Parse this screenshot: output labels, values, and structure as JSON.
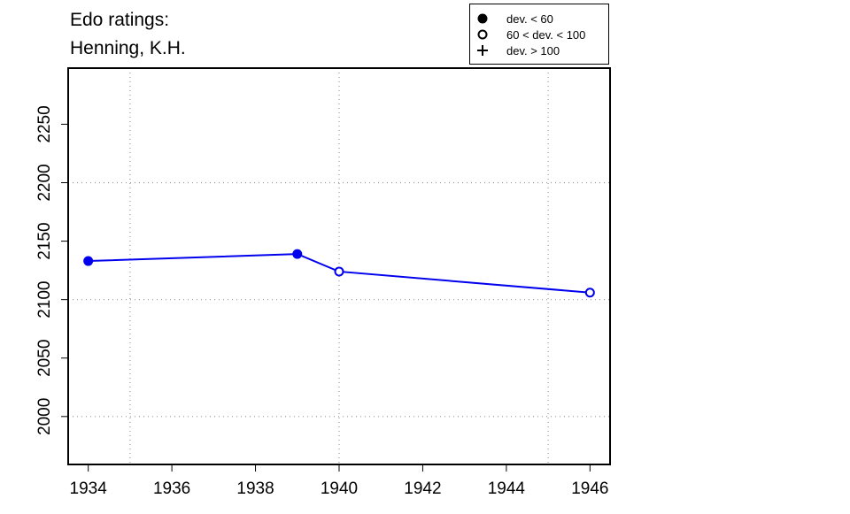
{
  "chart_data": {
    "type": "line",
    "title": [
      "Edo ratings:",
      "Henning, K.H."
    ],
    "x": [
      1934,
      1939,
      1940,
      1946
    ],
    "series": [
      {
        "name": "Henning, K.H.",
        "color": "#0000ee",
        "values": [
          2133,
          2139,
          2124,
          2106
        ],
        "markers": [
          "filled",
          "filled",
          "open",
          "open"
        ]
      }
    ],
    "xlim": [
      1933.52,
      1946.48
    ],
    "xticks": [
      1934,
      1936,
      1938,
      1940,
      1942,
      1944,
      1946
    ],
    "ylim": [
      1959,
      2298
    ],
    "yticks": [
      2000,
      2050,
      2100,
      2150,
      2200,
      2250
    ],
    "xgrid": [
      1935,
      1940,
      1945
    ],
    "ygrid": [
      2000,
      2100,
      2200
    ],
    "legend": [
      {
        "label": "dev. < 60",
        "symbol": "filled"
      },
      {
        "label": "60 < dev. < 100",
        "symbol": "open"
      },
      {
        "label": "dev. > 100",
        "symbol": "plus"
      }
    ]
  }
}
